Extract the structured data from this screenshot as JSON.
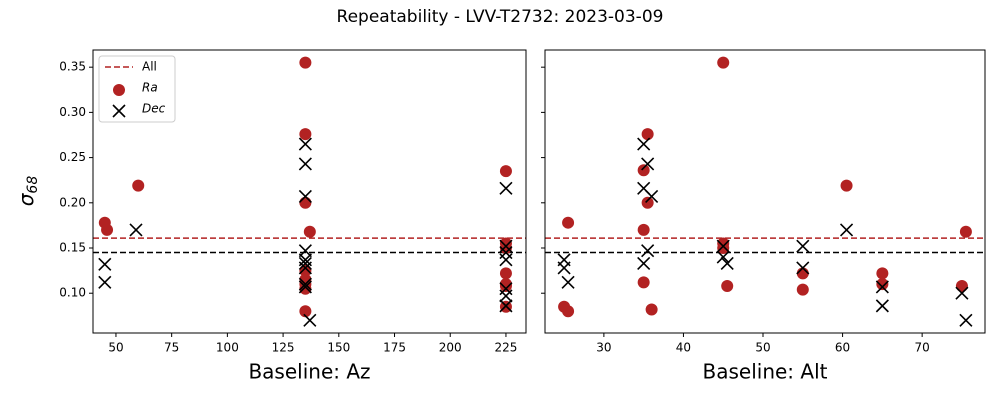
{
  "title": "Repeatability - LVV-T2732: 2023-03-09",
  "y_label": {
    "symbol": "σ",
    "subscript": "68"
  },
  "chart_data": [
    {
      "type": "scatter",
      "x_label": "Baseline: Az",
      "xlim": [
        39.7,
        234
      ],
      "xticks": [
        50,
        75,
        100,
        125,
        150,
        175,
        200,
        225
      ],
      "ylim": [
        0.056,
        0.369
      ],
      "yticks": [
        {
          "value": 0.1,
          "label": "0.10"
        },
        0.15,
        {
          "value": 0.2,
          "label": "0.20"
        },
        0.25,
        {
          "value": 0.3,
          "label": "0.30"
        },
        0.35
      ],
      "show_ytick_labels": true,
      "legend": "upper left",
      "lines": [
        {
          "name": "All",
          "value": 0.161,
          "color": "#b22222"
        },
        {
          "value": 0.145,
          "color": "#000000"
        }
      ],
      "series": [
        {
          "name": "Ra",
          "marker": "circle",
          "color": "#b22222",
          "x": [
            45,
            46,
            60,
            135,
            135,
            135,
            137,
            135,
            135,
            135,
            135,
            135,
            225,
            225,
            225,
            225,
            225,
            225,
            225
          ],
          "values": [
            0.178,
            0.17,
            0.219,
            0.355,
            0.276,
            0.2,
            0.168,
            0.125,
            0.115,
            0.105,
            0.11,
            0.08,
            0.235,
            0.155,
            0.15,
            0.122,
            0.11,
            0.108,
            0.085
          ]
        },
        {
          "name": "Dec",
          "marker": "x",
          "color": "#000000",
          "x": [
            45,
            45,
            59,
            135,
            135,
            135,
            135,
            135,
            135,
            135,
            135,
            135,
            137,
            225,
            225,
            225,
            225,
            225,
            225,
            225
          ],
          "values": [
            0.132,
            0.112,
            0.17,
            0.265,
            0.243,
            0.207,
            0.147,
            0.137,
            0.133,
            0.128,
            0.11,
            0.107,
            0.07,
            0.216,
            0.152,
            0.145,
            0.137,
            0.105,
            0.097,
            0.086
          ]
        }
      ]
    },
    {
      "type": "scatter",
      "x_label": "Baseline: Alt",
      "xlim": [
        22.6,
        77.9
      ],
      "xticks": [
        30,
        40,
        50,
        60,
        70
      ],
      "ylim": [
        0.056,
        0.369
      ],
      "yticks": [
        {
          "value": 0.1,
          "label": "0.10"
        },
        0.15,
        {
          "value": 0.2,
          "label": "0.20"
        },
        0.25,
        {
          "value": 0.3,
          "label": "0.30"
        },
        0.35
      ],
      "show_ytick_labels": false,
      "lines": [
        {
          "value": 0.161,
          "color": "#b22222"
        },
        {
          "value": 0.145,
          "color": "#000000"
        }
      ],
      "series": [
        {
          "marker": "circle",
          "color": "#b22222",
          "x": [
            25,
            25.5,
            25.5,
            35,
            35,
            35,
            35.5,
            35.5,
            36,
            45,
            45,
            45,
            45.5,
            55,
            55,
            60.5,
            65,
            65,
            75,
            75.5
          ],
          "values": [
            0.085,
            0.08,
            0.178,
            0.236,
            0.17,
            0.112,
            0.2,
            0.276,
            0.082,
            0.355,
            0.155,
            0.15,
            0.108,
            0.122,
            0.104,
            0.219,
            0.122,
            0.11,
            0.108,
            0.168
          ]
        },
        {
          "marker": "x",
          "color": "#000000",
          "x": [
            25,
            25,
            25.5,
            35,
            35.5,
            35,
            36,
            35.5,
            35,
            45,
            45,
            45.5,
            55,
            55,
            60.5,
            65,
            65,
            75,
            75.5
          ],
          "values": [
            0.137,
            0.128,
            0.112,
            0.265,
            0.243,
            0.216,
            0.207,
            0.147,
            0.133,
            0.152,
            0.14,
            0.133,
            0.152,
            0.128,
            0.17,
            0.107,
            0.086,
            0.1,
            0.07
          ]
        }
      ]
    }
  ]
}
